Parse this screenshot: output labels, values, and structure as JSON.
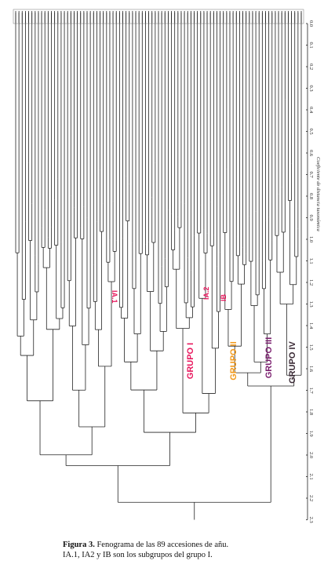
{
  "figure": {
    "caption_label": "Figura 3.",
    "caption_text": "Fenograma de las 89 accesiones de añu.",
    "caption_line2": "IA.1, IA2 y IB son los subgrupos del grupo I."
  },
  "chart_data": {
    "type": "dendrogram",
    "n_leaves": 89,
    "axis": {
      "label": "Coeficiente de distancia taxonómica",
      "ticks": [
        "0.0",
        "0.1",
        "0.2",
        "0.3",
        "0.4",
        "0.5",
        "0.6",
        "0.7",
        "0.8",
        "0.9",
        "1.0",
        "1.1",
        "1.2",
        "1.3",
        "1.4",
        "1.5",
        "1.6",
        "1.7",
        "1.8",
        "1.9",
        "2.0",
        "2.1",
        "2.2",
        "2.3"
      ],
      "range": [
        0.0,
        2.3
      ]
    },
    "groups": [
      {
        "label": "GRUPO I",
        "color": "#e8175d"
      },
      {
        "label": "GRUPO II",
        "color": "#f39a1b"
      },
      {
        "label": "GRUPO III",
        "color": "#7a1e6e"
      },
      {
        "label": "GRUPO IV",
        "color": "#3a2a35"
      }
    ],
    "subgroups": [
      {
        "label": "IA.1",
        "color": "#e8175d"
      },
      {
        "label": "IA.2",
        "color": "#e8175d"
      },
      {
        "label": "IB",
        "color": "#e8175d"
      }
    ]
  }
}
